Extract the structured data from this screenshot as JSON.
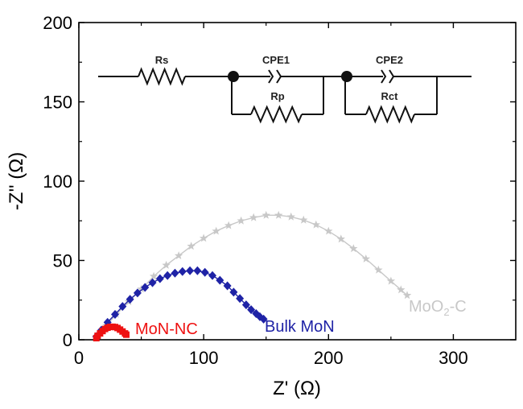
{
  "chart_data": {
    "type": "scatter",
    "title": "",
    "xlabel": "Z' (Ω)",
    "ylabel": "-Z'' (Ω)",
    "xlim": [
      0,
      350
    ],
    "ylim": [
      0,
      200
    ],
    "x_ticks": [
      0,
      100,
      200,
      300
    ],
    "y_ticks": [
      0,
      50,
      100,
      150,
      200
    ],
    "grid": false,
    "series": [
      {
        "name": "MoN-NC",
        "color": "#ee1111",
        "marker": "square",
        "x": [
          14,
          15,
          17,
          19,
          21,
          23,
          25,
          27,
          29,
          31,
          33,
          35,
          37,
          38
        ],
        "y": [
          1,
          2.5,
          4,
          5.5,
          6.8,
          7.6,
          8.1,
          8.2,
          8.0,
          7.4,
          6.4,
          5.2,
          4.0,
          3.2
        ]
      },
      {
        "name": "Bulk MoN",
        "color": "#1f23a6",
        "marker": "diamond",
        "x": [
          14,
          18,
          23,
          29,
          35,
          41,
          47,
          53,
          59,
          65,
          71,
          77,
          83,
          89,
          95,
          101,
          107,
          113,
          119,
          124,
          129,
          134,
          138,
          142,
          145,
          148
        ],
        "y": [
          2,
          6,
          11,
          16,
          21,
          25.5,
          29.5,
          33,
          36,
          38.5,
          40.5,
          42,
          43,
          43.5,
          43.5,
          42.5,
          40.5,
          37.5,
          34,
          30,
          26,
          22,
          19,
          16.5,
          14.5,
          13
        ]
      },
      {
        "name": "MoO",
        "name_sub": "2",
        "name_suffix": "-C",
        "color": "#c8c8c8",
        "marker": "star",
        "x": [
          16,
          22,
          30,
          40,
          50,
          60,
          70,
          80,
          90,
          100,
          110,
          120,
          130,
          140,
          150,
          160,
          170,
          180,
          190,
          200,
          210,
          220,
          230,
          240,
          250,
          258,
          263
        ],
        "y": [
          3,
          9,
          16,
          24,
          32,
          40,
          47,
          53,
          59,
          64,
          68.5,
          72,
          75,
          77,
          78.5,
          78.5,
          77.5,
          75.5,
          72.5,
          68.5,
          63.5,
          57.5,
          51,
          44,
          37,
          31.5,
          28
        ]
      }
    ],
    "inset": {
      "type": "equivalent-circuit",
      "labels": [
        "Rs",
        "CPE1",
        "Rp",
        "CPE2",
        "Rct"
      ]
    }
  }
}
